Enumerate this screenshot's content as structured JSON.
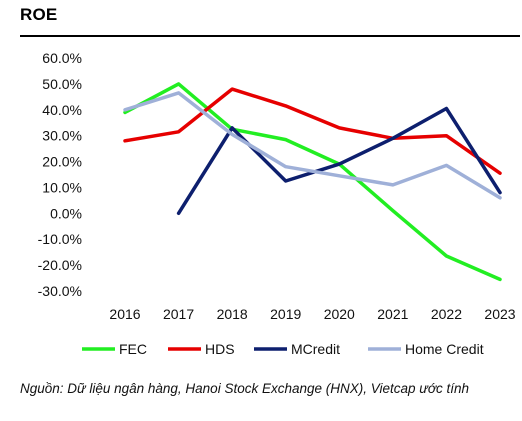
{
  "chart_data": {
    "type": "line",
    "title": "ROE",
    "x": [
      "2016",
      "2017",
      "2018",
      "2019",
      "2020",
      "2021",
      "2022",
      "2023"
    ],
    "yticks": [
      "60.0%",
      "50.0%",
      "40.0%",
      "30.0%",
      "20.0%",
      "10.0%",
      "0.0%",
      "-10.0%",
      "-20.0%",
      "-30.0%"
    ],
    "ylim": [
      -30,
      60
    ],
    "grid": false,
    "legend_position": "bottom",
    "series": [
      {
        "name": "FEC",
        "color": "#22ee22",
        "values": [
          39,
          50,
          32.5,
          28.5,
          19,
          1,
          -16.5,
          -25.5
        ]
      },
      {
        "name": "HDS",
        "color": "#e60000",
        "values": [
          28,
          31.5,
          48,
          41.5,
          33,
          29,
          30,
          15.5
        ]
      },
      {
        "name": "MCredit",
        "color": "#0d1f6e",
        "values": [
          null,
          0,
          33,
          12.5,
          19,
          29,
          40.5,
          8
        ]
      },
      {
        "name": "Home Credit",
        "color": "#9fb0d8",
        "values": [
          40,
          46.5,
          30.5,
          18,
          14.5,
          11,
          18.5,
          6
        ]
      }
    ]
  },
  "source_text": "Nguồn: Dữ liệu ngân hàng, Hanoi Stock Exchange (HNX), Vietcap ước tính"
}
